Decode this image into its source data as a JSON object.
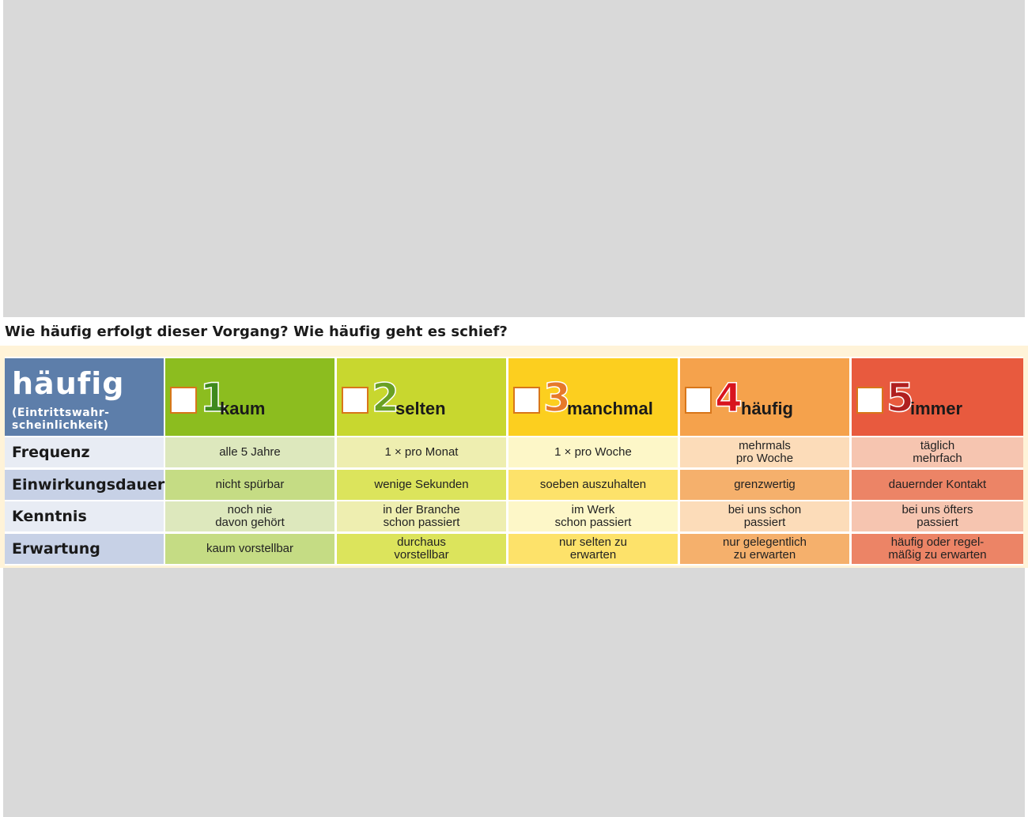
{
  "question": "Wie häufig erfolgt dieser Vorgang? Wie häufig geht es schief?",
  "header": {
    "title": "häufig",
    "subtitle": "(Eintrittswahr-\nscheinlichkeit)",
    "levels": [
      {
        "num": "1",
        "word": "kaum"
      },
      {
        "num": "2",
        "word": "selten"
      },
      {
        "num": "3",
        "word": "manchmal"
      },
      {
        "num": "4",
        "word": "häufig"
      },
      {
        "num": "5",
        "word": "immer"
      }
    ]
  },
  "rows": [
    {
      "label": "Frequenz",
      "cells": [
        "alle 5 Jahre",
        "1 × pro Monat",
        "1 × pro Woche",
        "mehrmals\npro Woche",
        "täglich\nmehrfach"
      ]
    },
    {
      "label": "Einwirkungsdauer",
      "cells": [
        "nicht spürbar",
        "wenige Sekunden",
        "soeben auszuhalten",
        "grenzwertig",
        "dauernder Kontakt"
      ]
    },
    {
      "label": "Kenntnis",
      "cells": [
        "noch nie\ndavon gehört",
        "in der Branche\nschon passiert",
        "im Werk\nschon passiert",
        "bei uns schon\npassiert",
        "bei uns öfters\npassiert"
      ]
    },
    {
      "label": "Erwartung",
      "cells": [
        "kaum vorstellbar",
        "durchaus\nvorstellbar",
        "nur selten zu\nerwarten",
        "nur gelegentlich\nzu erwarten",
        "häufig oder regel-\nmäßig zu erwarten"
      ]
    }
  ],
  "colors": {
    "header_bg": [
      "#8cbd1f",
      "#c8d72f",
      "#fccf1f",
      "#f5a24c",
      "#e85a3e"
    ],
    "num_color": [
      "#3f8a1e",
      "#6aa023",
      "#e6792a",
      "#d8141e",
      "#b02020"
    ],
    "row_label_bg": [
      "#e8ecf4",
      "#c7d1e6"
    ],
    "light_bg": [
      "#dde8bd",
      "#eeeeb0",
      "#fdf7c8",
      "#fcdcb9",
      "#f6c5b0"
    ],
    "dark_bg": [
      "#c5dc84",
      "#dce45c",
      "#fde26a",
      "#f5b06c",
      "#ec8466"
    ],
    "title_bg": "#5d7eaa"
  }
}
